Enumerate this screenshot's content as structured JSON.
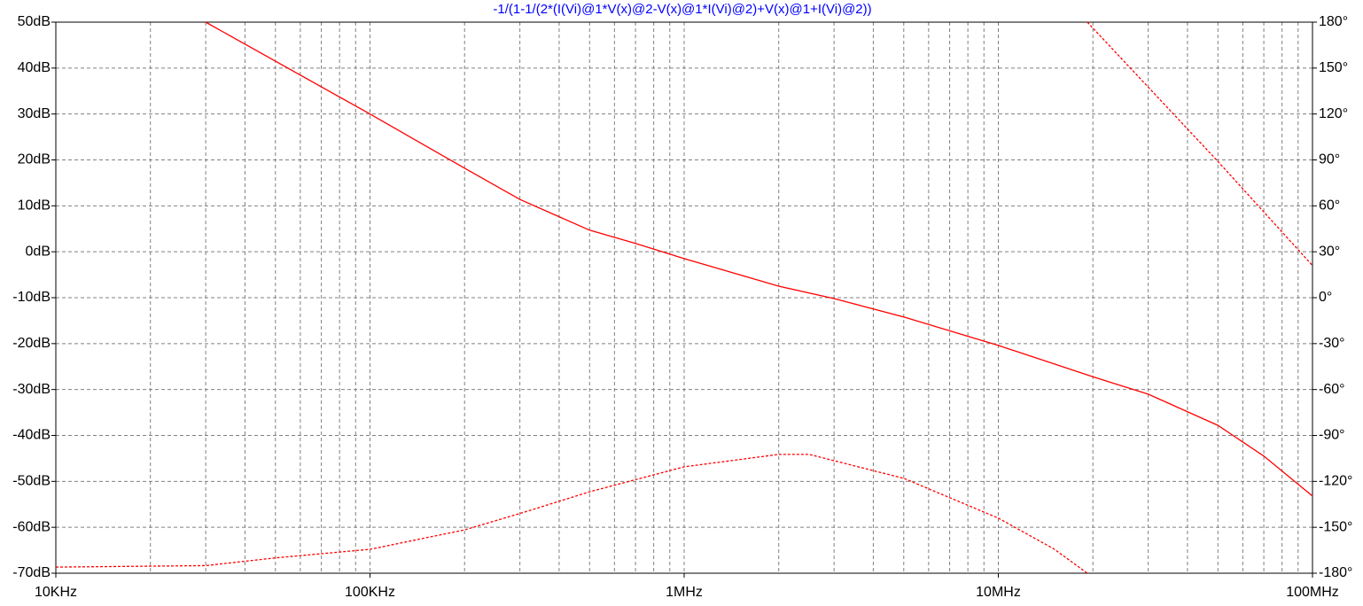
{
  "chart_data": {
    "type": "line",
    "title": "-1/(1-1/(2*(I(Vi)@1*V(x)@2-V(x)@1*I(Vi)@2)+V(x)@1+I(Vi)@2))",
    "xscale": "log",
    "grid": true,
    "xlim": [
      10000,
      100000000
    ],
    "xticks": [
      {
        "value": 10000,
        "label": "10KHz"
      },
      {
        "value": 100000,
        "label": "100KHz"
      },
      {
        "value": 1000000,
        "label": "1MHz"
      },
      {
        "value": 10000000,
        "label": "10MHz"
      },
      {
        "value": 100000000,
        "label": "100MHz"
      }
    ],
    "xminorticks": [
      20000,
      30000,
      40000,
      50000,
      60000,
      70000,
      80000,
      90000,
      200000,
      300000,
      400000,
      500000,
      600000,
      700000,
      800000,
      900000,
      2000000,
      3000000,
      4000000,
      5000000,
      6000000,
      7000000,
      8000000,
      9000000,
      20000000,
      30000000,
      40000000,
      50000000,
      60000000,
      70000000,
      80000000,
      90000000
    ],
    "ylim": [
      -70,
      50
    ],
    "yticks": [
      {
        "value": 50,
        "label": "50dB"
      },
      {
        "value": 40,
        "label": "40dB"
      },
      {
        "value": 30,
        "label": "30dB"
      },
      {
        "value": 20,
        "label": "20dB"
      },
      {
        "value": 10,
        "label": "10dB"
      },
      {
        "value": 0,
        "label": "0dB"
      },
      {
        "value": -10,
        "label": "-10dB"
      },
      {
        "value": -20,
        "label": "-20dB"
      },
      {
        "value": -30,
        "label": "-30dB"
      },
      {
        "value": -40,
        "label": "-40dB"
      },
      {
        "value": -50,
        "label": "-50dB"
      },
      {
        "value": -60,
        "label": "-60dB"
      },
      {
        "value": -70,
        "label": "-70dB"
      }
    ],
    "y2lim": [
      -180,
      180
    ],
    "y2ticks": [
      {
        "value": 180,
        "label": "180°"
      },
      {
        "value": 150,
        "label": "150°"
      },
      {
        "value": 120,
        "label": "120°"
      },
      {
        "value": 90,
        "label": "90°"
      },
      {
        "value": 60,
        "label": "60°"
      },
      {
        "value": 30,
        "label": "30°"
      },
      {
        "value": 0,
        "label": "0°"
      },
      {
        "value": -30,
        "label": "-30°"
      },
      {
        "value": -60,
        "label": "-60°"
      },
      {
        "value": -90,
        "label": "-90°"
      },
      {
        "value": -120,
        "label": "-120°"
      },
      {
        "value": -150,
        "label": "-150°"
      },
      {
        "value": -180,
        "label": "-180°"
      }
    ],
    "series": [
      {
        "color": "#ff0000",
        "dash": false,
        "x": [
          30000,
          100000,
          200000,
          300000,
          500000,
          700000,
          1000000,
          2000000,
          3000000,
          5000000,
          10000000,
          20000000,
          30000000,
          50000000,
          70000000,
          100000000
        ],
        "values": [
          50,
          30,
          18.2,
          11.4,
          4.7,
          1.8,
          -1.5,
          -7.5,
          -10.2,
          -14.2,
          -20.4,
          -27.2,
          -31,
          -37.8,
          -44.5,
          -53.2
        ]
      },
      {
        "color": "#ff0000",
        "dash": true,
        "axis": "y2",
        "x": [
          10000,
          30000,
          50000,
          100000,
          200000,
          300000,
          500000,
          1000000,
          2000000,
          2500000,
          5000000,
          10000000,
          15000000,
          19200000,
          19200000,
          19200000,
          50000000,
          100000000
        ],
        "values": [
          -176,
          -175,
          -170,
          -164.4,
          -151.7,
          -141,
          -126.8,
          -110.5,
          -102.4,
          -102.4,
          -118,
          -144,
          -164,
          -180,
          null,
          180,
          89,
          21
        ]
      }
    ]
  }
}
